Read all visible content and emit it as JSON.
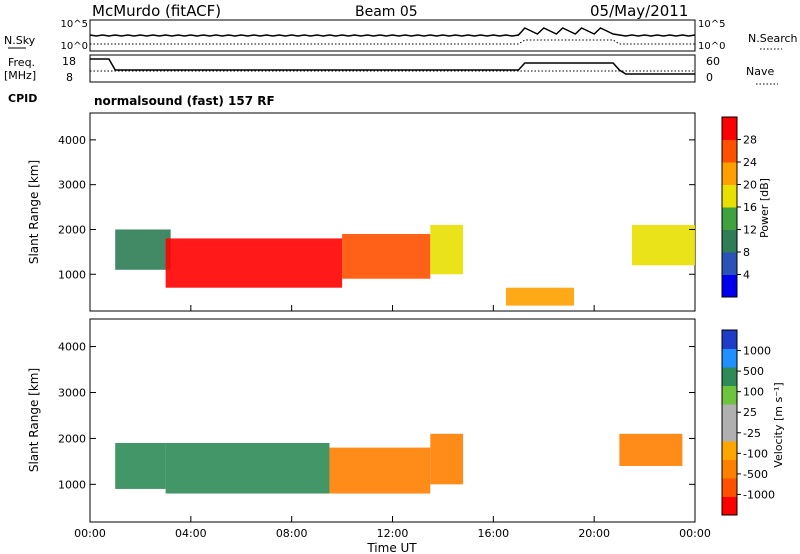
{
  "header": {
    "station": "McMurdo (fitACF)",
    "beam": "Beam 05",
    "date": "05/May/2011"
  },
  "strips": {
    "nsky_label": "N.Sky",
    "nsky_ticks": [
      "10^5",
      "10^0"
    ],
    "nsearch_label": "N.Search",
    "nsearch_ticks": [
      "10^5",
      "10^0"
    ],
    "freq_label_1": "Freq.",
    "freq_label_2": "[MHz]",
    "freq_ticks": [
      "18",
      "8"
    ],
    "nave_label": "Nave",
    "nave_ticks": [
      "60",
      "0"
    ],
    "cpid_label": "CPID",
    "cpid_text": "normalsound (fast) 157 RF"
  },
  "colors": {
    "power_scale": [
      "#0000ee",
      "#2a52b8",
      "#2e7d55",
      "#3fa23f",
      "#e8e000",
      "#ffa000",
      "#ff5000",
      "#ff0000"
    ],
    "velocity_scale": [
      "#ff0000",
      "#ff5000",
      "#ff8000",
      "#ffa500",
      "#b0b0b0",
      "#b0b0b0",
      "#6ec43c",
      "#2e8b57",
      "#1e90ff",
      "#1e3cc8"
    ]
  },
  "chart_data": [
    {
      "type": "heatmap",
      "panel": "power",
      "ylabel": "Slant Range [km]",
      "xlabel": "",
      "x_ticks": [
        "00:00",
        "04:00",
        "08:00",
        "12:00",
        "16:00",
        "20:00",
        "00:00"
      ],
      "y_ticks": [
        "1000",
        "2000",
        "3000",
        "4000"
      ],
      "xlim_hours": [
        0,
        24
      ],
      "ylim_km": [
        180,
        4600
      ],
      "colorbar_label": "Power [dB]",
      "colorbar_ticks": [
        "4",
        "8",
        "12",
        "16",
        "20",
        "24",
        "28"
      ],
      "regions": [
        {
          "t0": 1.0,
          "t1": 3.2,
          "r0": 1100,
          "r1": 2000,
          "value_db": 9
        },
        {
          "t0": 3.0,
          "t1": 10.0,
          "r0": 700,
          "r1": 1800,
          "value_db": 27
        },
        {
          "t0": 10.0,
          "t1": 13.5,
          "r0": 900,
          "r1": 1900,
          "value_db": 24
        },
        {
          "t0": 13.5,
          "t1": 14.8,
          "r0": 1000,
          "r1": 2100,
          "value_db": 18
        },
        {
          "t0": 16.5,
          "t1": 19.2,
          "r0": 300,
          "r1": 700,
          "value_db": 22
        },
        {
          "t0": 21.5,
          "t1": 24.0,
          "r0": 1200,
          "r1": 2100,
          "value_db": 16
        }
      ]
    },
    {
      "type": "heatmap",
      "panel": "velocity",
      "ylabel": "Slant Range [km]",
      "xlabel": "Time UT",
      "x_ticks": [
        "00:00",
        "04:00",
        "08:00",
        "12:00",
        "16:00",
        "20:00",
        "00:00"
      ],
      "y_ticks": [
        "1000",
        "2000",
        "3000",
        "4000"
      ],
      "xlim_hours": [
        0,
        24
      ],
      "ylim_km": [
        180,
        4600
      ],
      "colorbar_label": "Velocity [m s⁻¹]",
      "colorbar_ticks": [
        "1000",
        "500",
        "100",
        "25",
        "-25",
        "-100",
        "-500",
        "-1000"
      ],
      "regions": [
        {
          "t0": 1.0,
          "t1": 3.0,
          "r0": 900,
          "r1": 1900,
          "value_ms": 150
        },
        {
          "t0": 3.0,
          "t1": 9.5,
          "r0": 800,
          "r1": 1900,
          "value_ms": 300
        },
        {
          "t0": 9.5,
          "t1": 13.5,
          "r0": 800,
          "r1": 1800,
          "value_ms": -200
        },
        {
          "t0": 13.5,
          "t1": 14.8,
          "r0": 1000,
          "r1": 2100,
          "value_ms": -150
        },
        {
          "t0": 21.0,
          "t1": 23.5,
          "r0": 1400,
          "r1": 2100,
          "value_ms": -250
        }
      ]
    }
  ]
}
